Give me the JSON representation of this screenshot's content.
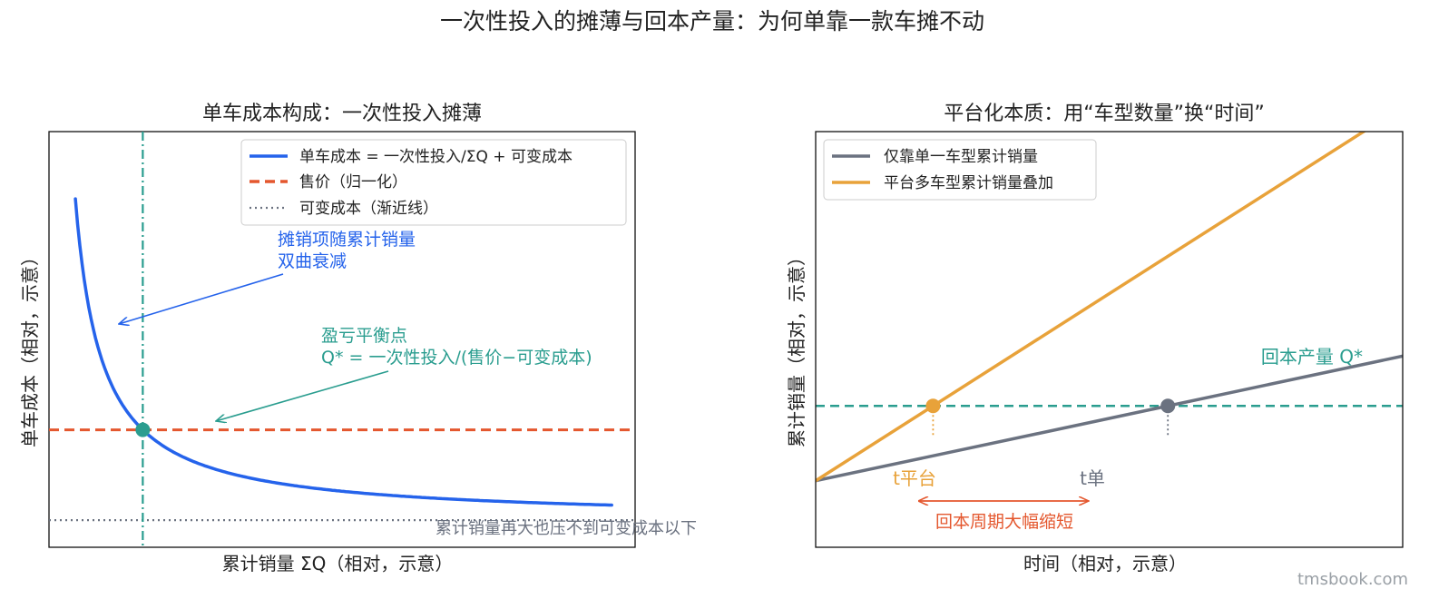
{
  "figure": {
    "title": "一次性投入的摊薄与回本产量：为何单靠一款车摊不动",
    "watermark": "tmsbook.com"
  },
  "colors": {
    "blue": "#2563eb",
    "red": "#e4572e",
    "gray": "#6b7280",
    "teal": "#2a9d8f",
    "orange": "#e8a23a",
    "arrow_red": "#e4572e"
  },
  "chart_data": [
    {
      "type": "line",
      "title": "单车成本构成：一次性投入摊薄",
      "xlabel": "累计销量 ΣQ（相对，示意）",
      "ylabel": "单车成本（相对，示意）",
      "xlim": [
        0,
        10
      ],
      "ylim": [
        0.6,
        5.2
      ],
      "grid": false,
      "legend_position": "top-right",
      "series": [
        {
          "name": "单车成本 = 一次性投入/ΣQ + 可变成本",
          "style": "solid",
          "color": "#2563eb",
          "formula": "y = 1.6/x + 0.9"
        },
        {
          "name": "售价（归一化）",
          "style": "dashed",
          "color": "#e4572e",
          "y": 1.9
        },
        {
          "name": "可变成本（渐近线）",
          "style": "dotted",
          "color": "#6b7280",
          "y": 0.9
        }
      ],
      "breakeven": {
        "x": 1.6,
        "y": 1.9
      },
      "annotations": [
        {
          "text": [
            "摊销项随累计销量",
            "双曲衰减"
          ],
          "color": "#2563eb"
        },
        {
          "text": [
            "盈亏平衡点",
            "Q* = 一次性投入/(售价−可变成本)"
          ],
          "color": "#2a9d8f"
        },
        {
          "text": [
            "累计销量再大也压不到可变成本以下"
          ],
          "color": "#6b7280"
        }
      ]
    },
    {
      "type": "line",
      "title": "平台化本质：用“车型数量”换“时间”",
      "xlabel": "时间（相对，示意）",
      "ylabel": "累计销量（相对，示意）",
      "xlim": [
        0,
        10
      ],
      "ylim": [
        0,
        10
      ],
      "grid": false,
      "legend_position": "top-left",
      "series": [
        {
          "name": "仅靠单一车型累计销量",
          "color": "#6b7280",
          "slope": 0.6
        },
        {
          "name": "平台多车型累计销量叠加",
          "color": "#e8a23a",
          "slope": 1.8
        }
      ],
      "threshold": {
        "y": 3.6,
        "label": "回本产量 Q*",
        "color": "#2a9d8f"
      },
      "markers": [
        {
          "label": "t平台",
          "x": 2.0,
          "color": "#e8a23a"
        },
        {
          "label": "t单",
          "x": 6.0,
          "color": "#6b7280"
        }
      ],
      "span_annotation": {
        "text": "回本周期大幅缩短",
        "color": "#e4572e"
      }
    }
  ]
}
